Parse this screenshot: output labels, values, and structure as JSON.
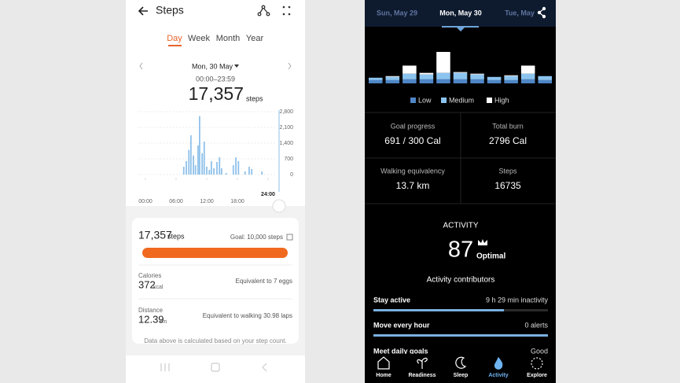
{
  "left_screen": {
    "header": {
      "title": "Steps"
    },
    "tabs": [
      "Day",
      "Week",
      "Month",
      "Year"
    ],
    "date": "Mon, 30 May",
    "time_range": "00:00–23:59",
    "total": "17,357",
    "total_unit": "steps",
    "chart_data": {
      "type": "bar",
      "x": [
        7.5,
        8.0,
        8.5,
        8.9,
        9.4,
        9.8,
        10.3,
        10.6,
        11.1,
        11.5,
        12.0,
        12.5,
        12.9,
        13.4,
        14.0,
        14.5,
        14.9,
        15.8,
        17.2,
        17.7,
        18.2,
        19.5,
        20.3,
        20.8,
        22.8
      ],
      "values": [
        350,
        600,
        1100,
        1750,
        850,
        420,
        1300,
        2600,
        950,
        1470,
        350,
        210,
        600,
        280,
        560,
        770,
        280,
        70,
        420,
        770,
        600,
        140,
        350,
        245,
        140
      ],
      "color": "#8fc1ea",
      "xlim": [
        0,
        24
      ],
      "xticks": [
        {
          "value": 0,
          "label": "00:00"
        },
        {
          "value": 6,
          "label": "06:00"
        },
        {
          "value": 12,
          "label": "12:00"
        },
        {
          "value": 18,
          "label": "18:00"
        },
        {
          "value": 24,
          "label": "24:00"
        }
      ],
      "ylim": [
        0,
        2800
      ],
      "yticks": [
        0,
        700,
        {
          "value": 1400,
          "label": "1,400"
        },
        {
          "value": 2100,
          "label": "2,100"
        },
        {
          "value": 2800,
          "label": "2,800"
        }
      ]
    },
    "summary": {
      "steps": "17,357",
      "steps_unit": "steps",
      "goal": "Goal: 10,000 steps",
      "calories_label": "Calories",
      "calories": "372",
      "calories_unit": "kcal",
      "calories_note": "Equivalent to 7 eggs",
      "distance_label": "Distance",
      "distance": "12.39",
      "distance_unit": "km",
      "distance_note": "Equivalent to walking 30.98 laps"
    },
    "footnote": "Data above is calculated based on your step count."
  },
  "right_screen": {
    "dates": [
      "Sun, May 29",
      "Mon, May 30",
      "Tue, May"
    ],
    "chart_data": {
      "type": "stacked-bar",
      "categories": [
        null,
        null,
        null,
        null,
        null,
        null,
        null,
        null,
        null,
        null,
        null
      ],
      "series": [
        {
          "name": "Low",
          "color": "#4f86c6",
          "values": [
            4,
            4,
            5,
            5,
            5,
            5,
            5,
            4,
            4,
            5,
            4
          ]
        },
        {
          "name": "Medium",
          "color": "#8cc4f0",
          "values": [
            3,
            4,
            7,
            6,
            8,
            8,
            6,
            4,
            5,
            7,
            5
          ]
        },
        {
          "name": "High",
          "color": "#ffffff",
          "values": [
            0,
            1,
            10,
            2,
            26,
            1,
            1,
            0,
            1,
            10,
            0
          ]
        }
      ]
    },
    "metrics": [
      {
        "label": "Goal progress",
        "value": "691 / 300 Cal"
      },
      {
        "label": "Total burn",
        "value": "2796 Cal"
      },
      {
        "label": "Walking equivalency",
        "value": "13.7 km"
      },
      {
        "label": "Steps",
        "value": "16735"
      }
    ],
    "activity": {
      "title": "ACTIVITY",
      "score": "87",
      "rating": "Optimal",
      "contributors_title": "Activity contributors",
      "contributors": [
        {
          "label": "Stay active",
          "value": "9 h 29 min inactivity"
        },
        {
          "label": "Move every hour",
          "value": "0 alerts"
        },
        {
          "label": "Meet daily goals",
          "value": "Good"
        }
      ]
    },
    "nav": [
      "Home",
      "Readiness",
      "Sleep",
      "Activity",
      "Explore"
    ]
  }
}
